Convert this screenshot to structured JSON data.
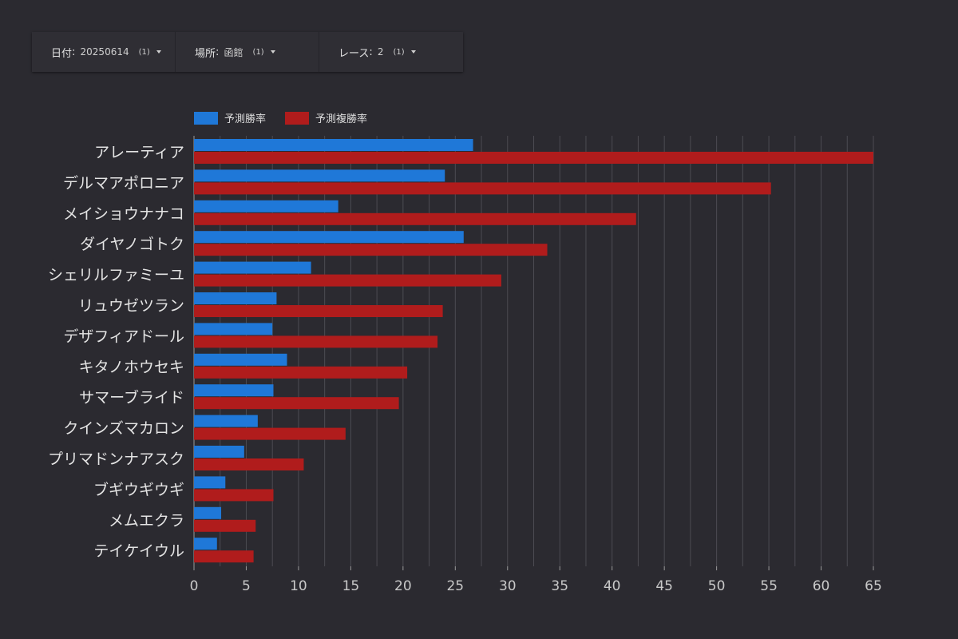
{
  "filters": [
    {
      "label": "日付",
      "value": "20250614",
      "count": "(1)"
    },
    {
      "label": "場所",
      "value": "函館",
      "count": "(1)"
    },
    {
      "label": "レース",
      "value": "2",
      "count": "(1)"
    }
  ],
  "colors": {
    "background": "#2b2a30",
    "win": "#1f78d8",
    "place": "#b01c1c",
    "grid": "#4c4b52"
  },
  "chart_data": {
    "type": "bar",
    "orientation": "horizontal",
    "categories": [
      "アレーティア",
      "デルマアポロニア",
      "メイショウナナコ",
      "ダイヤノゴトク",
      "シェリルファミーユ",
      "リュウゼツラン",
      "デザフィアドール",
      "キタノホウセキ",
      "サマーブライド",
      "クインズマカロン",
      "プリマドンナアスク",
      "ブギウギウギ",
      "メムエクラ",
      "テイケイウル"
    ],
    "series": [
      {
        "name": "予測勝率",
        "color": "#1f78d8",
        "values": [
          26.7,
          24.0,
          13.8,
          25.8,
          11.2,
          7.9,
          7.5,
          8.9,
          7.6,
          6.1,
          4.8,
          3.0,
          2.6,
          2.2
        ]
      },
      {
        "name": "予測複勝率",
        "color": "#b01c1c",
        "values": [
          65.0,
          55.2,
          42.3,
          33.8,
          29.4,
          23.8,
          23.3,
          20.4,
          19.6,
          14.5,
          10.5,
          7.6,
          5.9,
          5.7
        ]
      }
    ],
    "x_ticks": [
      "0",
      "5",
      "10",
      "15",
      "20",
      "25",
      "30",
      "35",
      "40",
      "45",
      "50",
      "55",
      "60",
      "65"
    ],
    "xlim": [
      0,
      65
    ],
    "grid": true,
    "legend_position": "top-left"
  }
}
